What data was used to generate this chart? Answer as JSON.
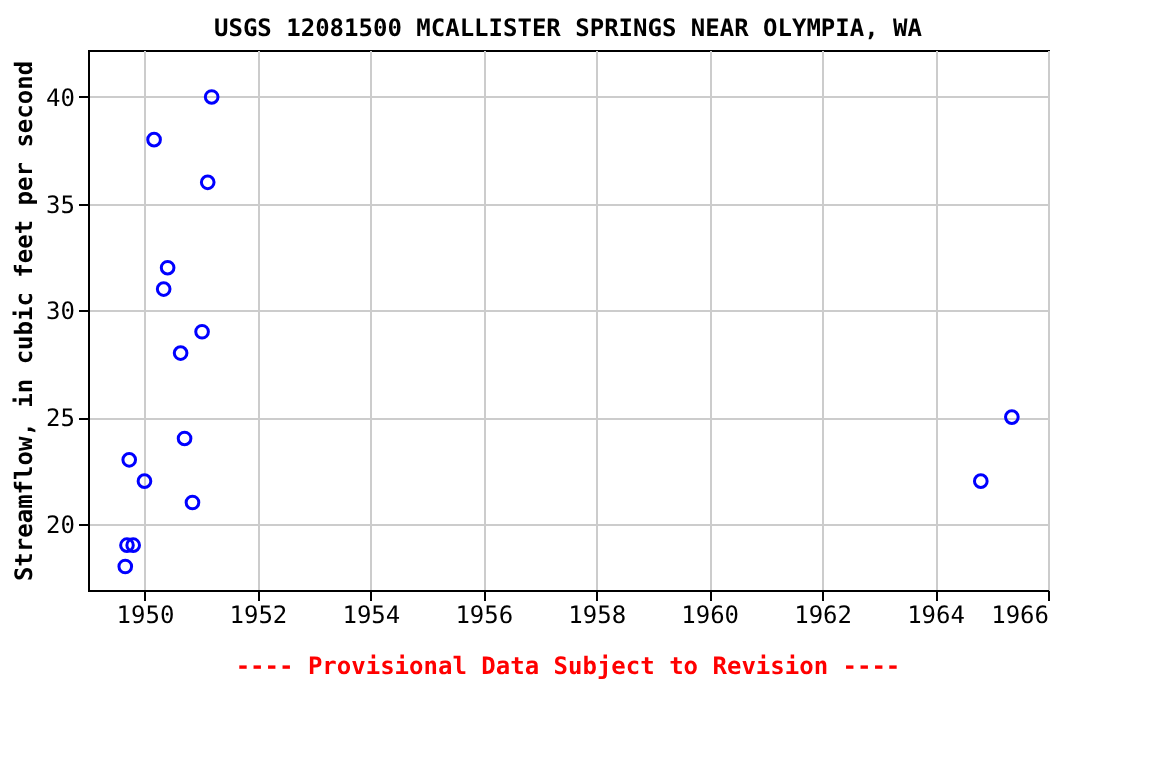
{
  "chart_data": {
    "type": "scatter",
    "title": "USGS 12081500 MCALLISTER SPRINGS NEAR OLYMPIA, WA",
    "ylabel": "Streamflow, in cubic feet per second",
    "annotations": [
      "---- Provisional Data Subject to Revision ----"
    ],
    "x": [
      1951.19,
      1950.17,
      1951.12,
      1950.41,
      1950.34,
      1951.02,
      1950.64,
      1950.71,
      1949.73,
      1950.0,
      1950.85,
      1949.69,
      1949.8,
      1949.66,
      1964.81,
      1965.36
    ],
    "series": [
      {
        "color": "#0000ff",
        "values": [
          40,
          38,
          36,
          32,
          31,
          29,
          28,
          24,
          23,
          22,
          21,
          19,
          19,
          18,
          22,
          25
        ]
      }
    ],
    "xlim": [
      1949,
      1966
    ],
    "xticks": [
      1950,
      1952,
      1954,
      1956,
      1958,
      1960,
      1962,
      1964,
      1966
    ],
    "ylim": [
      16.9,
      42.2
    ],
    "yticks": [
      20,
      25,
      30,
      35,
      40
    ],
    "grid": true,
    "marker": "circle",
    "legend": false
  }
}
